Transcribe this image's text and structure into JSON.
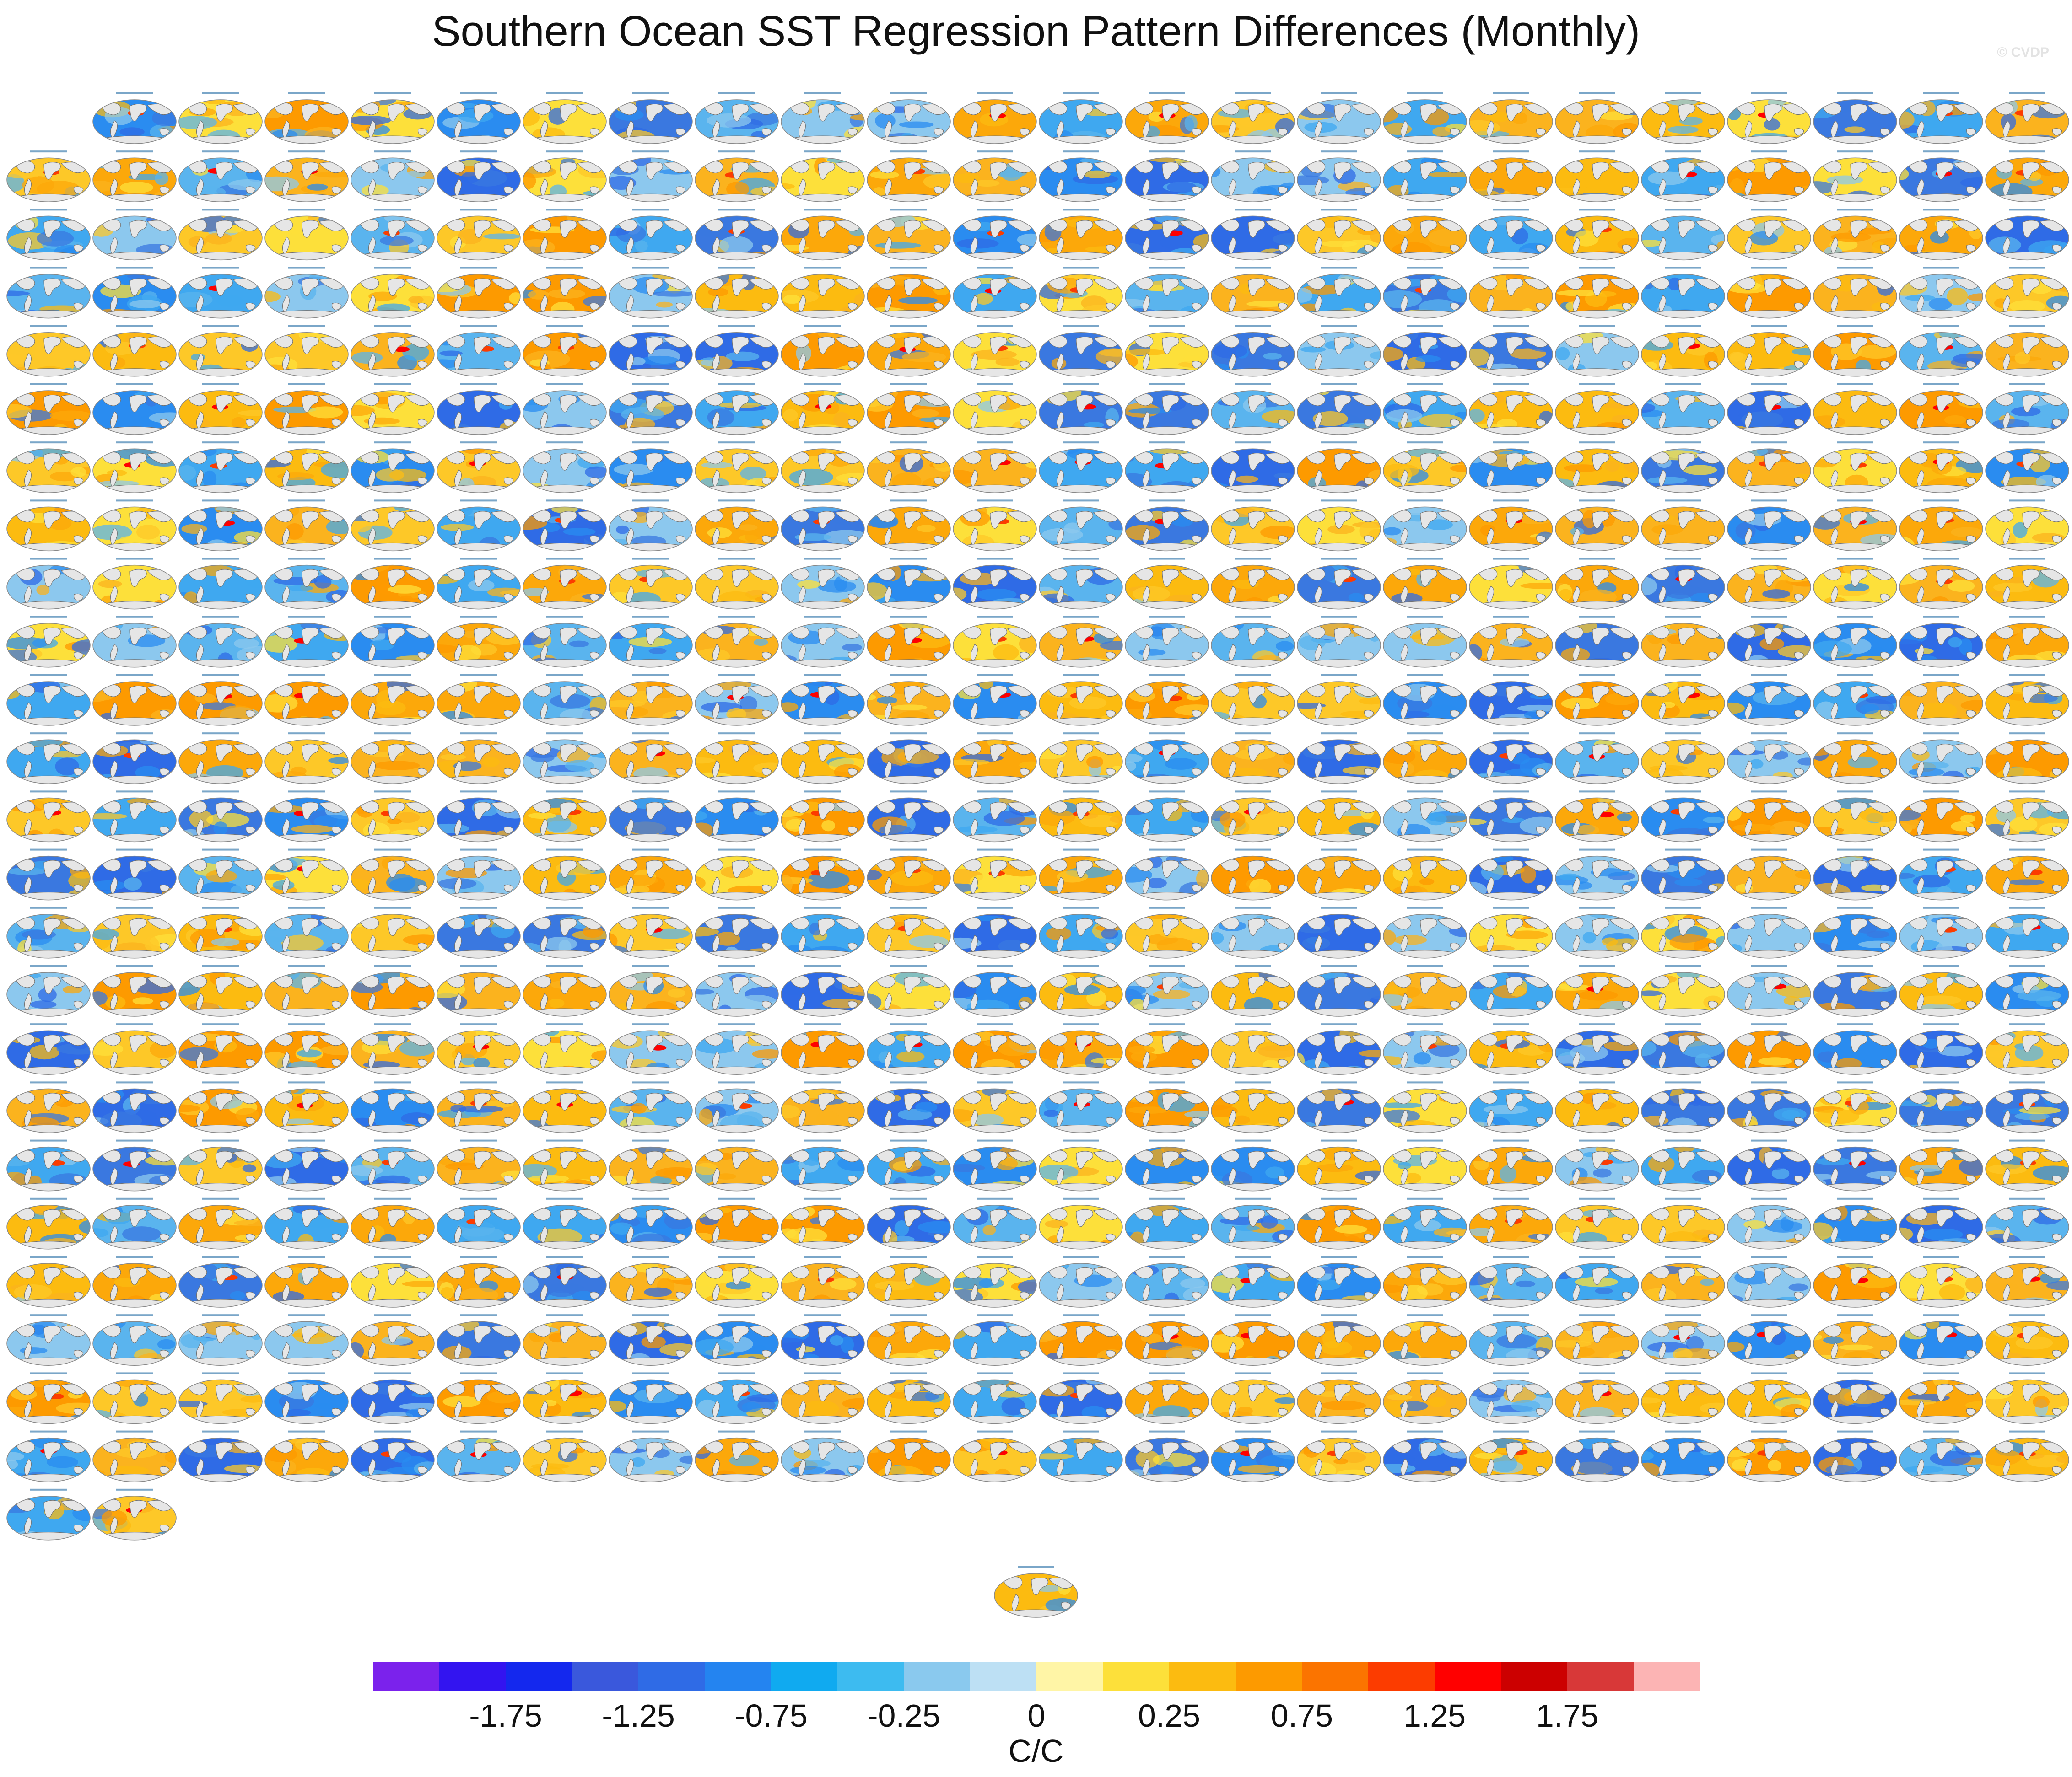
{
  "chart_data": {
    "type": "heatmap",
    "title": "Southern Ocean SST Regression Pattern Differences (Monthly)",
    "watermark": "© CVDP",
    "grid": {
      "rows": 25,
      "cols": 24,
      "panel_count": 578
    },
    "colorbar": {
      "unit": "C/C",
      "tick_labels": [
        "-1.75",
        "-1.25",
        "-0.75",
        "-0.25",
        "0",
        "0.25",
        "0.75",
        "1.25",
        "1.75"
      ],
      "colors": [
        "#7b22ec",
        "#3314f0",
        "#1428ee",
        "#3a58dc",
        "#2f6be6",
        "#2484f0",
        "#10aaf0",
        "#3dbbf0",
        "#8ac9ee",
        "#bde0f4",
        "#fff5a6",
        "#fde03a",
        "#fcbb10",
        "#fd9a00",
        "#fb7400",
        "#fc3c00",
        "#ff0000",
        "#cc0000",
        "#d83838",
        "#fcb4b4"
      ]
    }
  }
}
